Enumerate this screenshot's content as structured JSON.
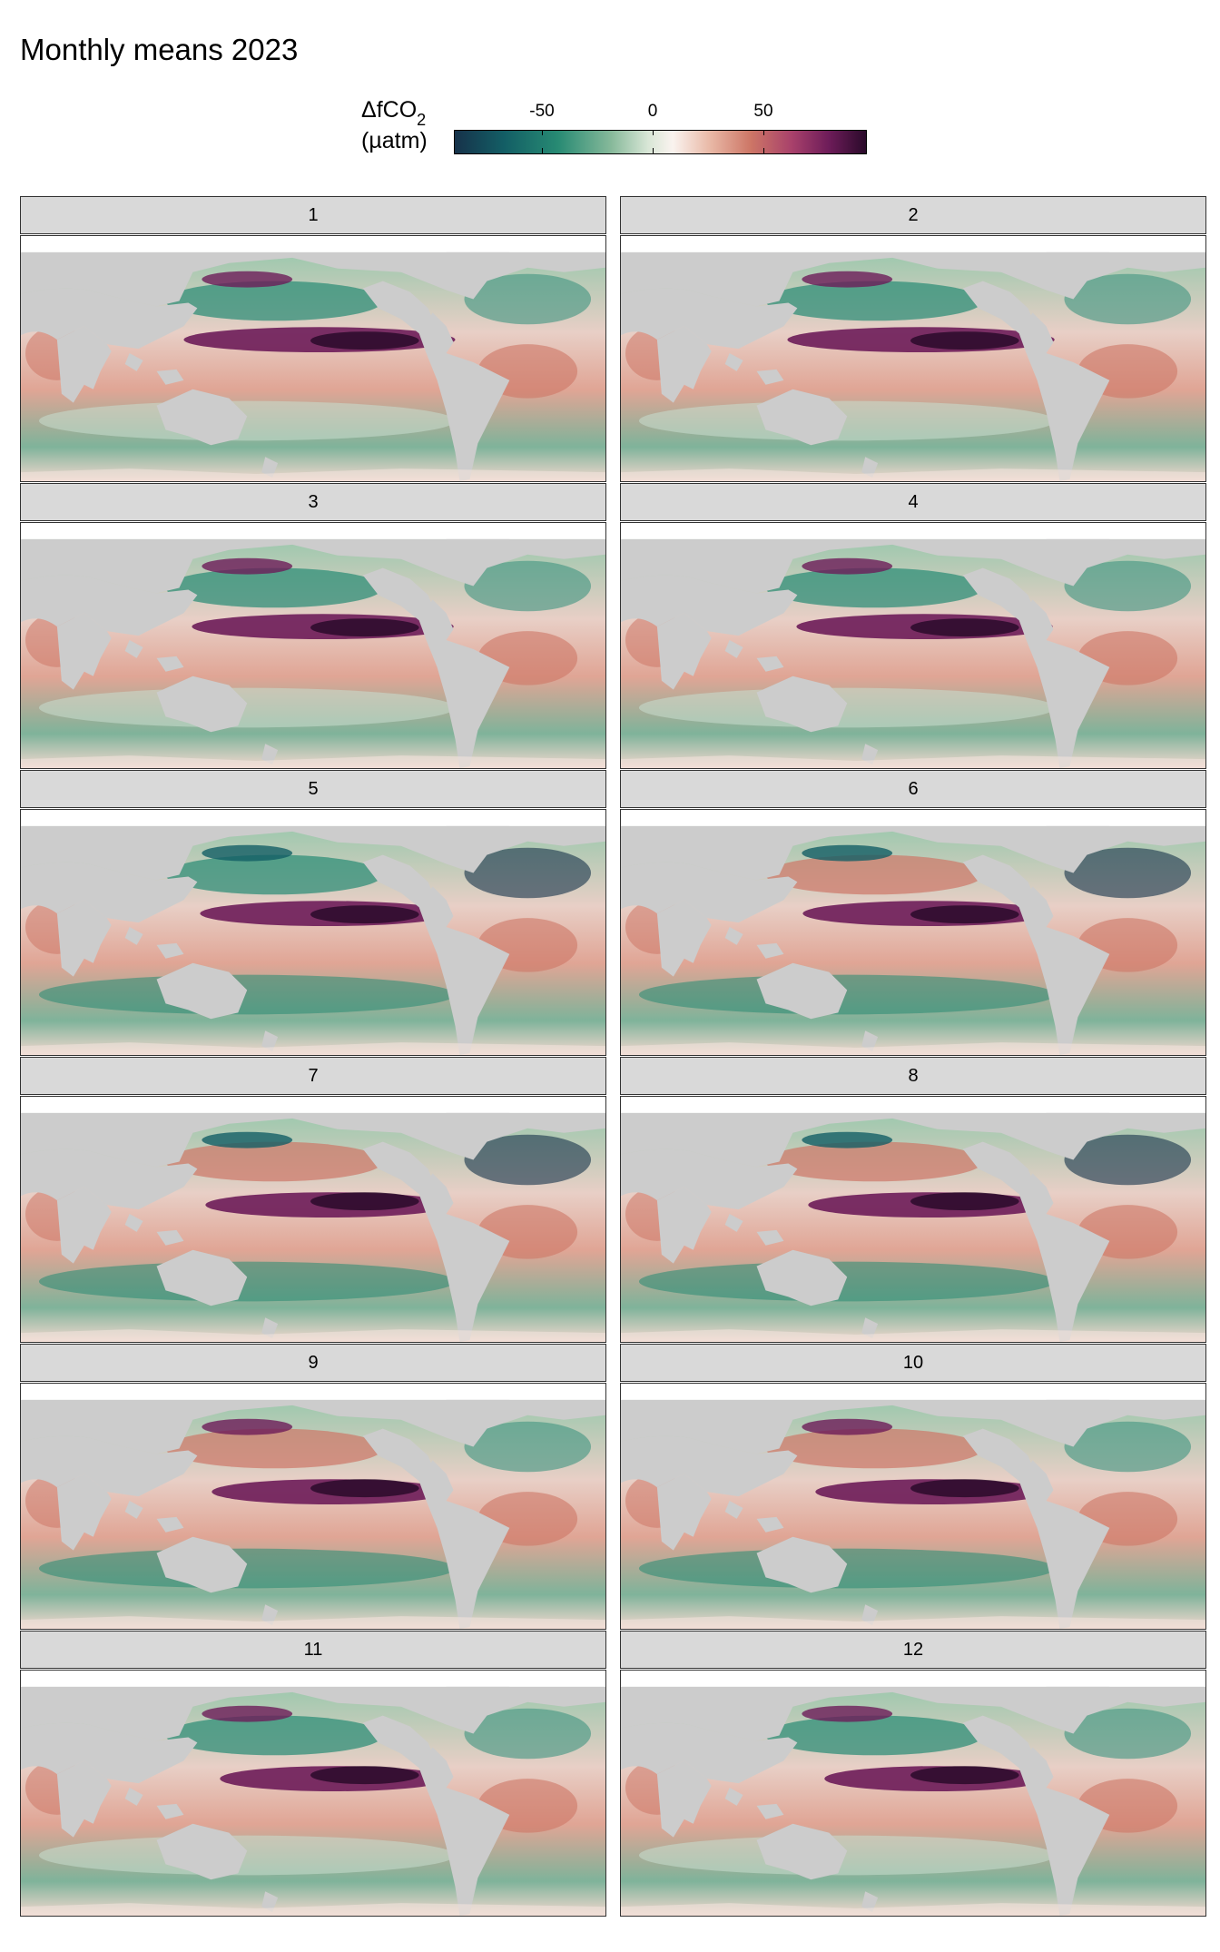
{
  "title": "Monthly means 2023",
  "legend": {
    "title_main": "ΔfCO",
    "title_sub": "2",
    "unit": "(µatm)",
    "ticks": [
      "-50",
      "0",
      "50"
    ],
    "colors": [
      "#16324a",
      "#278a73",
      "#d8e6d6",
      "#faf3ef",
      "#cd7666",
      "#6d1c59",
      "#2a0a2a"
    ]
  },
  "land_color": "#cccccc",
  "panels": [
    {
      "label": "1"
    },
    {
      "label": "2"
    },
    {
      "label": "3"
    },
    {
      "label": "4"
    },
    {
      "label": "5"
    },
    {
      "label": "6"
    },
    {
      "label": "7"
    },
    {
      "label": "8"
    },
    {
      "label": "9"
    },
    {
      "label": "10"
    },
    {
      "label": "11"
    },
    {
      "label": "12"
    }
  ]
}
